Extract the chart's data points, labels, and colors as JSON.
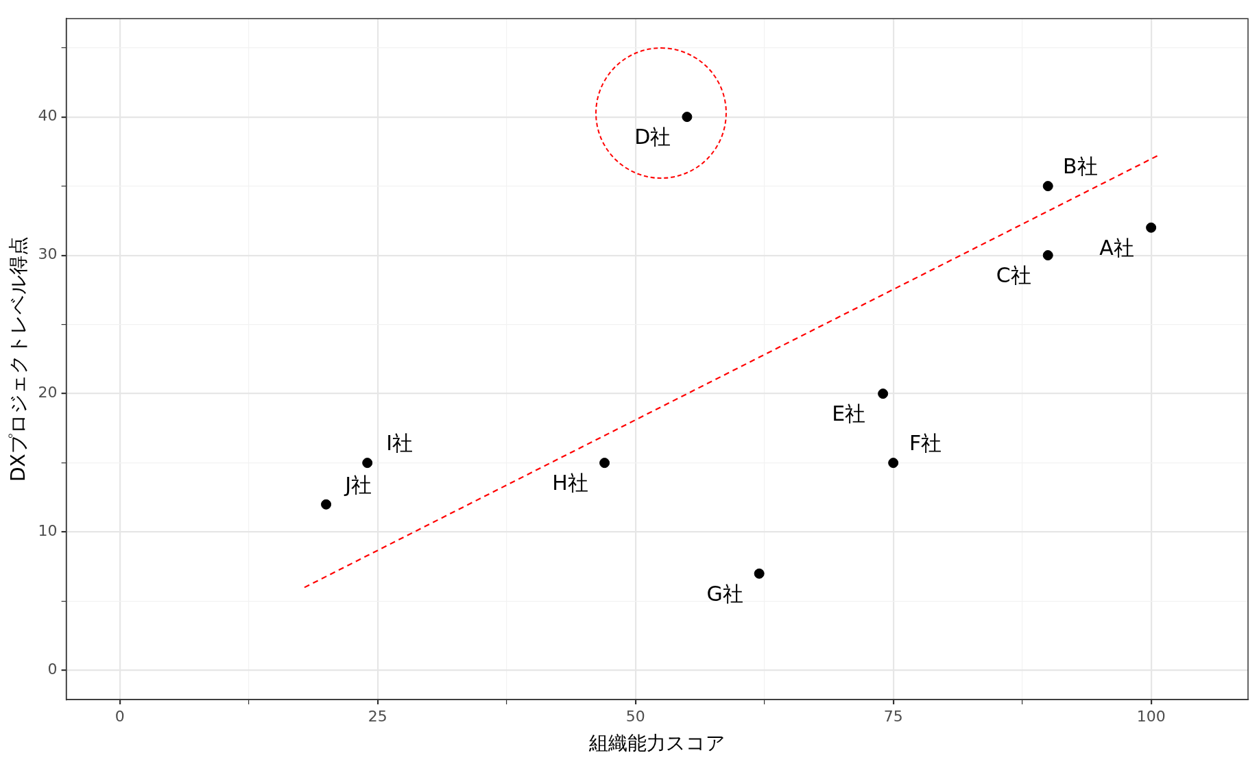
{
  "chart_data": {
    "type": "scatter",
    "xlabel": "組織能力スコア",
    "ylabel": "DXプロジェクトレベル得点",
    "x": [
      100,
      90,
      90,
      55,
      74,
      75,
      62,
      47,
      24,
      20
    ],
    "series": [
      {
        "color": "#000000",
        "values": [
          32,
          35,
          30,
          40,
          20,
          15,
          7,
          15,
          15,
          12
        ],
        "marker": "circle"
      },
      {
        "type": "line",
        "color": "#ff0000",
        "line_style": "dashed",
        "marker": "none",
        "x": [
          17.9,
          100.9
        ],
        "values": [
          6.0,
          37.3
        ]
      }
    ],
    "xlim": [
      -5.2,
      109.4
    ],
    "ylim": [
      -2.1,
      47.1
    ],
    "xticks": [
      0,
      {
        "value": 12.5,
        "label": null
      },
      25,
      {
        "value": 37.5,
        "label": null
      },
      50,
      {
        "value": 62.5,
        "label": null
      },
      75,
      {
        "value": 87.5,
        "label": null
      },
      100
    ],
    "yticks": [
      0,
      {
        "value": 5,
        "label": null
      },
      10,
      {
        "value": 15,
        "label": null
      },
      20,
      {
        "value": 25,
        "label": null
      },
      30,
      {
        "value": 35,
        "label": null
      },
      40,
      {
        "value": 45,
        "label": null
      }
    ],
    "grid": true,
    "legend": false,
    "annotations": [
      {
        "text": "A社",
        "x": 100,
        "y": 32
      },
      {
        "text": "B社",
        "x": 90,
        "y": 35
      },
      {
        "text": "C社",
        "x": 90,
        "y": 30
      },
      {
        "text": "D社",
        "x": 55,
        "y": 40
      },
      {
        "text": "E社",
        "x": 74,
        "y": 20
      },
      {
        "text": "F社",
        "x": 75,
        "y": 15
      },
      {
        "text": "G社",
        "x": 62,
        "y": 7
      },
      {
        "text": "H社",
        "x": 47,
        "y": 15
      },
      {
        "text": "I社",
        "x": 24,
        "y": 15
      },
      {
        "text": "J社",
        "x": 20,
        "y": 12
      }
    ]
  }
}
